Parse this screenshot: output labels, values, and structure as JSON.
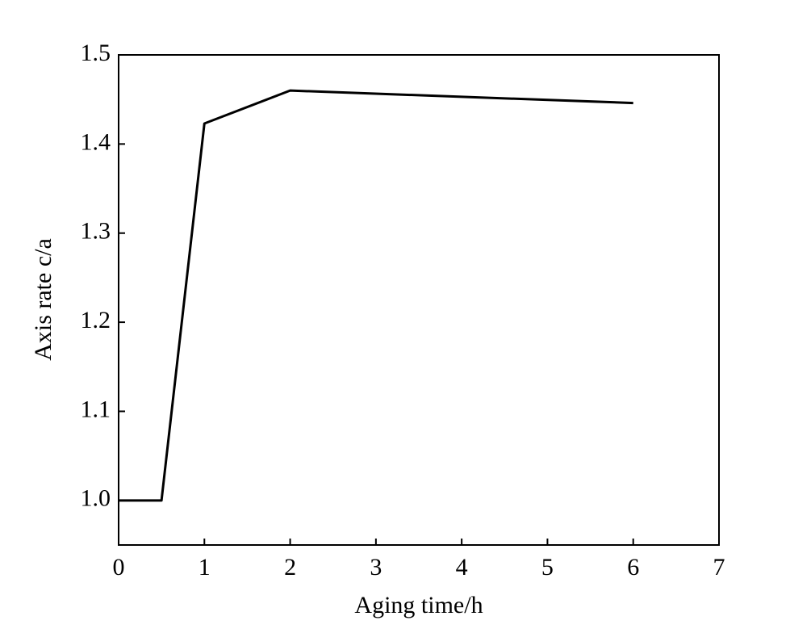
{
  "chart_data": {
    "type": "line",
    "xlabel": "Aging time/h",
    "ylabel": "Axis rate c/a",
    "x": [
      0,
      0.5,
      1,
      2,
      6
    ],
    "series": [
      {
        "color": "#000000",
        "values": [
          1.0,
          1.0,
          1.423,
          1.46,
          1.446
        ]
      }
    ],
    "xlim": [
      0,
      7
    ],
    "xticks": [
      0,
      1,
      2,
      3,
      4,
      5,
      6,
      7
    ],
    "ylim": [
      0.95,
      1.5
    ],
    "yticks": [
      {
        "value": 1.0,
        "label": "1.0"
      },
      1.1,
      1.2,
      1.3,
      1.4,
      1.5
    ],
    "grid": false
  }
}
